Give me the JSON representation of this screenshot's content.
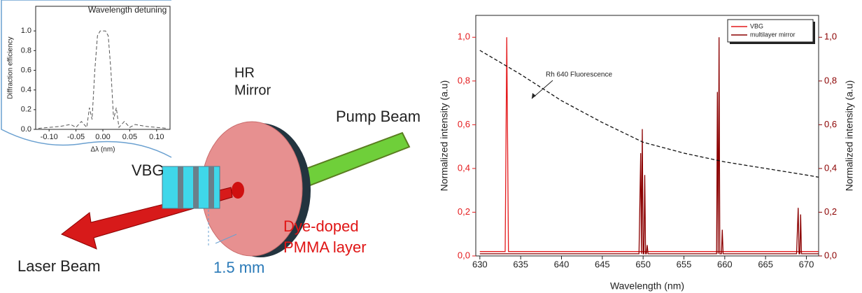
{
  "diagram": {
    "mirror_label": [
      "HR",
      "Mirror"
    ],
    "pump_label": "Pump Beam",
    "vbg_label": "VBG",
    "laser_label": "Laser Beam",
    "layer_label": [
      "Dye-doped",
      "PMMA layer"
    ],
    "gap_label": "1.5 mm"
  },
  "chart_data": [
    {
      "type": "line",
      "title": "Wavelength detuning",
      "xlabel": "Δλ (nm)",
      "ylabel": "Diffraction efficiency",
      "x": [
        -0.12,
        -0.1,
        -0.08,
        -0.06,
        -0.05,
        -0.04,
        -0.03,
        -0.025,
        -0.02,
        -0.015,
        -0.01,
        -0.005,
        0,
        0.005,
        0.01,
        0.015,
        0.02,
        0.025,
        0.03,
        0.04,
        0.05,
        0.06,
        0.08,
        0.1,
        0.12
      ],
      "series": [
        {
          "color": "#555555",
          "dash": true,
          "values": [
            0.01,
            0.02,
            0.03,
            0.05,
            0.02,
            0.08,
            0.02,
            0.22,
            0.1,
            0.6,
            0.95,
            1.0,
            1.0,
            1.0,
            0.95,
            0.6,
            0.1,
            0.22,
            0.02,
            0.08,
            0.02,
            0.05,
            0.03,
            0.02,
            0.01
          ]
        }
      ],
      "xlim": [
        -0.125,
        0.125
      ],
      "ylim": [
        0,
        1.25
      ],
      "xticks": [
        {
          "value": -0.1,
          "label": "-0.10"
        },
        {
          "value": -0.05,
          "label": "-0.05"
        },
        {
          "value": 0,
          "label": "0.00"
        },
        {
          "value": 0.05,
          "label": "0.05"
        },
        {
          "value": 0.1,
          "label": "0.10"
        }
      ],
      "yticks": [
        {
          "value": 0,
          "label": "0.0"
        },
        0.2,
        0.4,
        0.6,
        0.8,
        {
          "value": 1,
          "label": "1.0"
        }
      ]
    },
    {
      "type": "line",
      "xlabel": "Wavelength (nm)",
      "ylabel": "Normalized intensity (a.u)",
      "y2label": "Normalized intensity (a.u)",
      "annotation": "Rh 640 Fluorescence",
      "series": [
        {
          "name": "VBG",
          "color": "#e41a1c",
          "x": [
            630,
            633.1,
            633.3,
            633.5,
            671.5
          ],
          "values": [
            0.02,
            0.02,
            1.0,
            0.02,
            0.02
          ]
        },
        {
          "name": "multilayer mirror",
          "color": "#8b0000",
          "axis": "y2",
          "x": [
            630,
            649.5,
            649.7,
            649.8,
            649.9,
            650.0,
            650.1,
            650.2,
            650.3,
            650.4,
            650.5,
            650.6,
            659.0,
            659.1,
            659.2,
            659.3,
            659.4,
            659.6,
            659.7,
            659.8,
            668.8,
            669.0,
            669.1,
            669.2,
            669.3,
            669.4,
            671.5
          ],
          "values": [
            0.01,
            0.01,
            0.47,
            0.01,
            0.58,
            0.01,
            0.01,
            0.37,
            0.01,
            0.01,
            0.05,
            0.01,
            0.01,
            0.75,
            0.01,
            1.0,
            0.01,
            0.01,
            0.12,
            0.01,
            0.01,
            0.22,
            0.01,
            0.01,
            0.19,
            0.01,
            0.01
          ]
        },
        {
          "color": "#111111",
          "dash": true,
          "x": [
            630,
            635,
            640,
            645,
            650,
            655,
            660,
            665,
            670,
            671.5
          ],
          "values": [
            0.94,
            0.83,
            0.71,
            0.61,
            0.52,
            0.47,
            0.43,
            0.4,
            0.37,
            0.36
          ]
        }
      ],
      "xlim": [
        629.5,
        671.5
      ],
      "ylim": [
        0,
        1.1
      ],
      "y2lim": [
        0,
        1.1
      ],
      "xticks": [
        630,
        635,
        640,
        645,
        650,
        655,
        660,
        665,
        670
      ],
      "yticks": [
        {
          "value": 0,
          "label": "0,0"
        },
        {
          "value": 0.2,
          "label": "0,2"
        },
        {
          "value": 0.4,
          "label": "0,4"
        },
        {
          "value": 0.6,
          "label": "0,6"
        },
        {
          "value": 0.8,
          "label": "0,8"
        },
        {
          "value": 1,
          "label": "1,0"
        }
      ],
      "y2ticks": [
        {
          "value": 0,
          "label": "0,0"
        },
        {
          "value": 0.2,
          "label": "0,2"
        },
        {
          "value": 0.4,
          "label": "0,4"
        },
        {
          "value": 0.6,
          "label": "0,6"
        },
        {
          "value": 0.8,
          "label": "0,8"
        },
        {
          "value": 1,
          "label": "1,0"
        }
      ],
      "legend": "upper right"
    }
  ]
}
